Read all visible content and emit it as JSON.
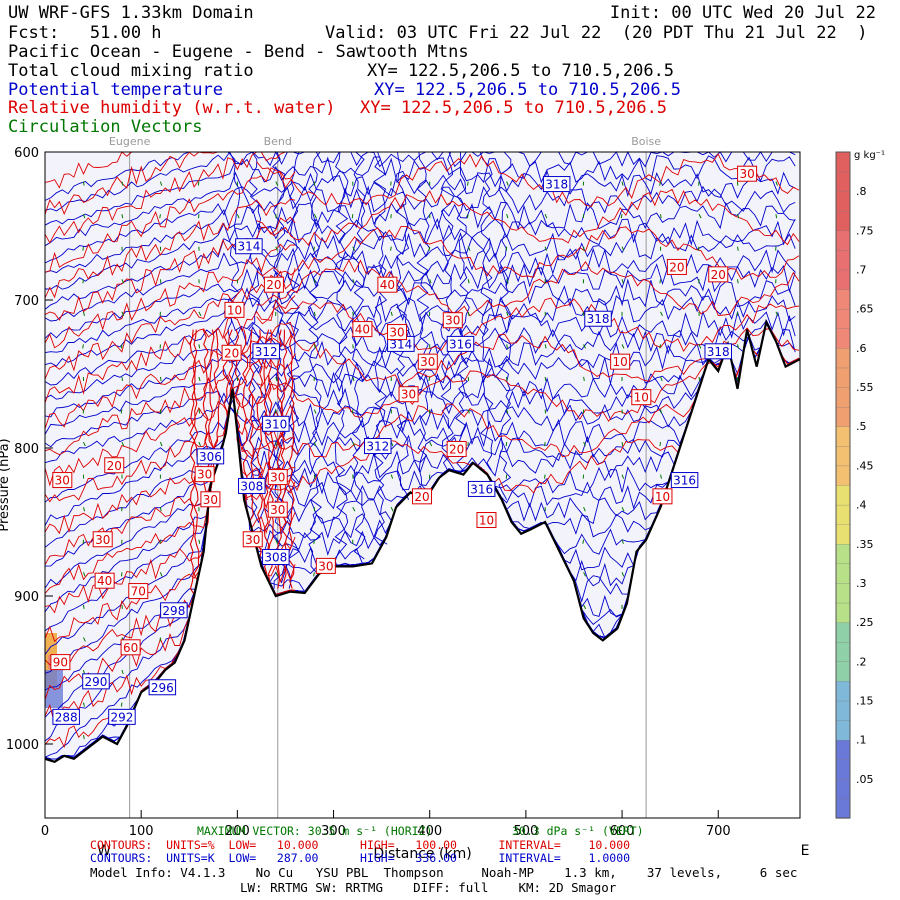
{
  "header": {
    "line1_left": "UW WRF-GFS 1.33km Domain",
    "line1_right": "Init: 00 UTC Wed 20 Jul 22",
    "line2_left": "Fcst:   51.00 h",
    "line2_right": "Valid: 03 UTC Fri 22 Jul 22  (20 PDT Thu 21 Jul 22  )",
    "line3": "Pacific Ocean - Eugene - Bend - Sawtooth Mtns",
    "line4_field": "Total cloud mixing ratio",
    "line4_xy": "XY= 122.5,206.5 to 710.5,206.5",
    "line5_field": "Potential temperature",
    "line5_xy": "XY= 122.5,206.5 to 710.5,206.5",
    "line6_field": "Relative humidity (w.r.t. water)",
    "line6_xy": "XY= 122.5,206.5 to 710.5,206.5",
    "line7_field": "Circulation Vectors"
  },
  "colors": {
    "theta": "#0000cc",
    "rh": "#dd0000",
    "vectors": "#007700",
    "terrain": "#000000",
    "sky_fill": "#f3f3fb",
    "cloud": [
      "#6a7cd6",
      "#f0b050",
      "#e08080"
    ]
  },
  "locations": [
    "Eugene",
    "Bend",
    "Boise"
  ],
  "chart_data": {
    "type": "contour-cross-section",
    "xlabel": "Distance (km)",
    "ylabel": "Pressure (hPa)",
    "x_ticks": [
      "0",
      "100",
      "200",
      "300",
      "400",
      "500",
      "600",
      "700"
    ],
    "y_ticks": [
      "600",
      "700",
      "800",
      "900",
      "1000"
    ],
    "xlim": [
      0,
      785
    ],
    "ylim": [
      1050,
      600
    ],
    "left_dir": "W",
    "right_dir": "E",
    "location_markers": [
      {
        "name": "Eugene",
        "x_km": 88
      },
      {
        "name": "Bend",
        "x_km": 242
      },
      {
        "name": "Boise",
        "x_km": 625
      }
    ],
    "terrain_pressure": [
      [
        0,
        1010
      ],
      [
        10,
        1012
      ],
      [
        20,
        1008
      ],
      [
        30,
        1010
      ],
      [
        40,
        1005
      ],
      [
        60,
        995
      ],
      [
        75,
        1000
      ],
      [
        85,
        988
      ],
      [
        100,
        965
      ],
      [
        115,
        958
      ],
      [
        125,
        950
      ],
      [
        135,
        945
      ],
      [
        145,
        930
      ],
      [
        155,
        900
      ],
      [
        165,
        870
      ],
      [
        172,
        825
      ],
      [
        180,
        810
      ],
      [
        188,
        790
      ],
      [
        195,
        760
      ],
      [
        200,
        790
      ],
      [
        207,
        835
      ],
      [
        215,
        855
      ],
      [
        225,
        880
      ],
      [
        240,
        900
      ],
      [
        255,
        897
      ],
      [
        270,
        898
      ],
      [
        285,
        885
      ],
      [
        300,
        880
      ],
      [
        320,
        880
      ],
      [
        340,
        878
      ],
      [
        355,
        860
      ],
      [
        365,
        840
      ],
      [
        380,
        830
      ],
      [
        395,
        835
      ],
      [
        410,
        820
      ],
      [
        420,
        815
      ],
      [
        435,
        818
      ],
      [
        445,
        810
      ],
      [
        460,
        818
      ],
      [
        475,
        835
      ],
      [
        485,
        850
      ],
      [
        495,
        858
      ],
      [
        505,
        855
      ],
      [
        520,
        850
      ],
      [
        535,
        870
      ],
      [
        550,
        890
      ],
      [
        560,
        915
      ],
      [
        570,
        925
      ],
      [
        580,
        930
      ],
      [
        595,
        922
      ],
      [
        605,
        905
      ],
      [
        615,
        870
      ],
      [
        625,
        862
      ],
      [
        640,
        840
      ],
      [
        655,
        810
      ],
      [
        665,
        790
      ],
      [
        675,
        770
      ],
      [
        690,
        740
      ],
      [
        700,
        748
      ],
      [
        710,
        730
      ],
      [
        720,
        760
      ],
      [
        730,
        720
      ],
      [
        740,
        745
      ],
      [
        750,
        715
      ],
      [
        760,
        728
      ],
      [
        770,
        745
      ],
      [
        785,
        740
      ]
    ],
    "theta_contours_labeled": [
      "288",
      "290",
      "292",
      "296",
      "298",
      "306",
      "308",
      "310",
      "312",
      "314",
      "316",
      "318"
    ],
    "rh_contours_labeled": [
      "10",
      "20",
      "30",
      "40",
      "60",
      "70",
      "90"
    ],
    "theta_labels": [
      {
        "v": "288",
        "x": 22,
        "p": 982
      },
      {
        "v": "290",
        "x": 53,
        "p": 958
      },
      {
        "v": "292",
        "x": 80,
        "p": 982
      },
      {
        "v": "296",
        "x": 122,
        "p": 962
      },
      {
        "v": "298",
        "x": 134,
        "p": 910
      },
      {
        "v": "306",
        "x": 172,
        "p": 806
      },
      {
        "v": "308",
        "x": 215,
        "p": 826
      },
      {
        "v": "308",
        "x": 240,
        "p": 874
      },
      {
        "v": "310",
        "x": 240,
        "p": 784
      },
      {
        "v": "312",
        "x": 230,
        "p": 735
      },
      {
        "v": "312",
        "x": 346,
        "p": 799
      },
      {
        "v": "314",
        "x": 212,
        "p": 664
      },
      {
        "v": "314",
        "x": 370,
        "p": 730
      },
      {
        "v": "316",
        "x": 432,
        "p": 730
      },
      {
        "v": "316",
        "x": 454,
        "p": 828
      },
      {
        "v": "316",
        "x": 665,
        "p": 822
      },
      {
        "v": "318",
        "x": 532,
        "p": 622
      },
      {
        "v": "318",
        "x": 575,
        "p": 713
      },
      {
        "v": "318",
        "x": 700,
        "p": 735
      }
    ],
    "rh_labels": [
      {
        "v": "30",
        "x": 18,
        "p": 822
      },
      {
        "v": "20",
        "x": 72,
        "p": 812
      },
      {
        "v": "30",
        "x": 60,
        "p": 862
      },
      {
        "v": "40",
        "x": 62,
        "p": 890
      },
      {
        "v": "70",
        "x": 97,
        "p": 897
      },
      {
        "v": "60",
        "x": 89,
        "p": 935
      },
      {
        "v": "90",
        "x": 16,
        "p": 945
      },
      {
        "v": "20",
        "x": 238,
        "p": 690
      },
      {
        "v": "10",
        "x": 197,
        "p": 707
      },
      {
        "v": "40",
        "x": 356,
        "p": 690
      },
      {
        "v": "40",
        "x": 330,
        "p": 720
      },
      {
        "v": "30",
        "x": 366,
        "p": 722
      },
      {
        "v": "30",
        "x": 424,
        "p": 714
      },
      {
        "v": "30",
        "x": 398,
        "p": 742
      },
      {
        "v": "30",
        "x": 378,
        "p": 764
      },
      {
        "v": "20",
        "x": 194,
        "p": 736
      },
      {
        "v": "20",
        "x": 392,
        "p": 833
      },
      {
        "v": "20",
        "x": 428,
        "p": 801
      },
      {
        "v": "10",
        "x": 459,
        "p": 849
      },
      {
        "v": "10",
        "x": 598,
        "p": 742
      },
      {
        "v": "10",
        "x": 620,
        "p": 766
      },
      {
        "v": "10",
        "x": 642,
        "p": 833
      },
      {
        "v": "20",
        "x": 657,
        "p": 678
      },
      {
        "v": "20",
        "x": 700,
        "p": 683
      },
      {
        "v": "30",
        "x": 730,
        "p": 615
      },
      {
        "v": "30",
        "x": 242,
        "p": 820
      },
      {
        "v": "30",
        "x": 242,
        "p": 842
      },
      {
        "v": "30",
        "x": 216,
        "p": 862
      },
      {
        "v": "30",
        "x": 292,
        "p": 880
      },
      {
        "v": "30",
        "x": 166,
        "p": 818
      },
      {
        "v": "30",
        "x": 172,
        "p": 835
      }
    ],
    "colorbar": {
      "units": "g kg⁻¹",
      "ticks": [
        ".05",
        ".1",
        ".15",
        ".2",
        ".25",
        ".3",
        ".35",
        ".4",
        ".45",
        ".5",
        ".55",
        ".6",
        ".65",
        ".7",
        ".75",
        ".8"
      ],
      "min": 0,
      "max": 0.85
    }
  },
  "footer": {
    "vector_label": "MAXIMUM VECTOR: 30.5 m s⁻¹ (HORIZ)",
    "vector_label2": "30.3 dPa s⁻¹ (VERT)",
    "rh_contours": "CONTOURS:  UNITS=%  LOW=   10.000      HIGH=   100.00      INTERVAL=    10.000",
    "theta_contours": "CONTOURS:  UNITS=K  LOW=   287.00      HIGH=   336.00      INTERVAL=    1.0000",
    "model_info": "Model Info: V4.1.3    No Cu   YSU PBL  Thompson     Noah-MP    1.3 km,    37 levels,     6 sec",
    "model_info2": "LW: RRTMG SW: RRTMG    DIFF: full    KM: 2D Smagor"
  }
}
